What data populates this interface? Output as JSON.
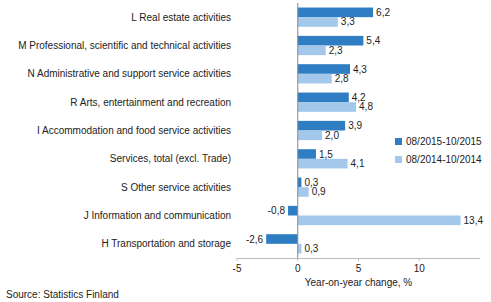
{
  "chart_data": {
    "type": "bar",
    "orientation": "horizontal",
    "categories": [
      "L Real estate activities",
      "M Professional, scientific and technical activities",
      "N Administrative and support service activities",
      "R Arts, entertainment and recreation",
      "I Accommodation and food service activities",
      "Services, total (excl. Trade)",
      "S Other service activities",
      "J Information and communication",
      "H Transportation and storage"
    ],
    "series": [
      {
        "name": "08/2015-10/2015",
        "color": "#2f7ec4",
        "values": [
          6.2,
          5.4,
          4.3,
          4.2,
          3.9,
          1.5,
          0.3,
          -0.8,
          -2.6
        ],
        "value_labels": [
          "6,2",
          "5,4",
          "4,3",
          "4,2",
          "3,9",
          "1,5",
          "0,3",
          "-0,8",
          "-2,6"
        ]
      },
      {
        "name": "08/2014-10/2014",
        "color": "#a3c8ec",
        "values": [
          3.3,
          2.3,
          2.8,
          4.8,
          2.0,
          4.1,
          0.9,
          13.4,
          0.3
        ],
        "value_labels": [
          "3,3",
          "2,3",
          "2,8",
          "4,8",
          "2,0",
          "4,1",
          "0,9",
          "13,4",
          "0,3"
        ]
      }
    ],
    "xlabel": "Year-on-year change, %",
    "source": "Source: Statistics Finland",
    "xlim": [
      -5,
      15
    ],
    "xticks": [
      -5,
      0,
      5,
      10
    ],
    "grid": false,
    "legend": "right",
    "data_labels": true
  }
}
